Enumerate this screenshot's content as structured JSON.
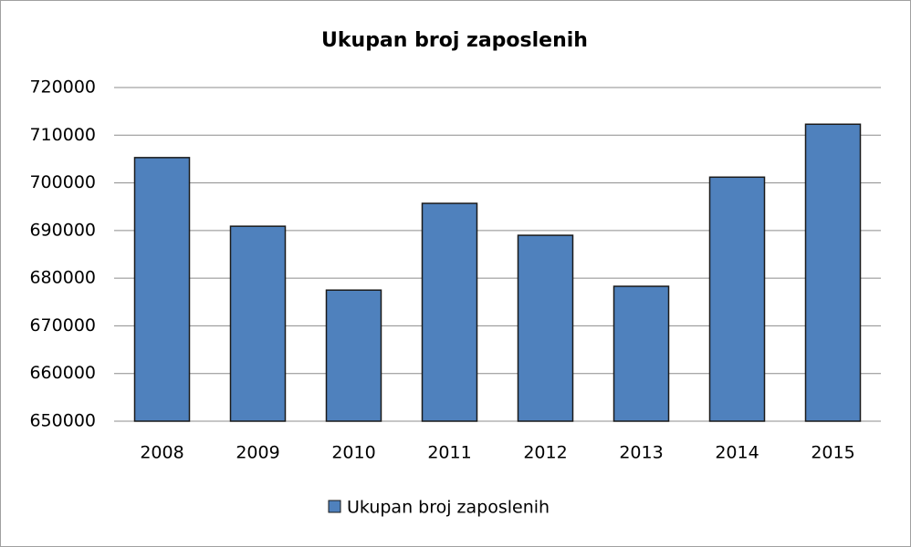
{
  "chart_data": {
    "type": "bar",
    "title": "Ukupan broj zaposlenih",
    "categories": [
      "2008",
      "2009",
      "2010",
      "2011",
      "2012",
      "2013",
      "2014",
      "2015"
    ],
    "series": [
      {
        "name": "Ukupan broj zaposlenih",
        "color": "#4f81bd",
        "values": [
          705300,
          690900,
          677500,
          695700,
          689000,
          678300,
          701200,
          712300
        ]
      }
    ],
    "ylim": [
      650000,
      720000
    ],
    "yticks": [
      650000,
      660000,
      670000,
      680000,
      690000,
      700000,
      710000,
      720000
    ],
    "grid": true,
    "legend": "bottom"
  }
}
